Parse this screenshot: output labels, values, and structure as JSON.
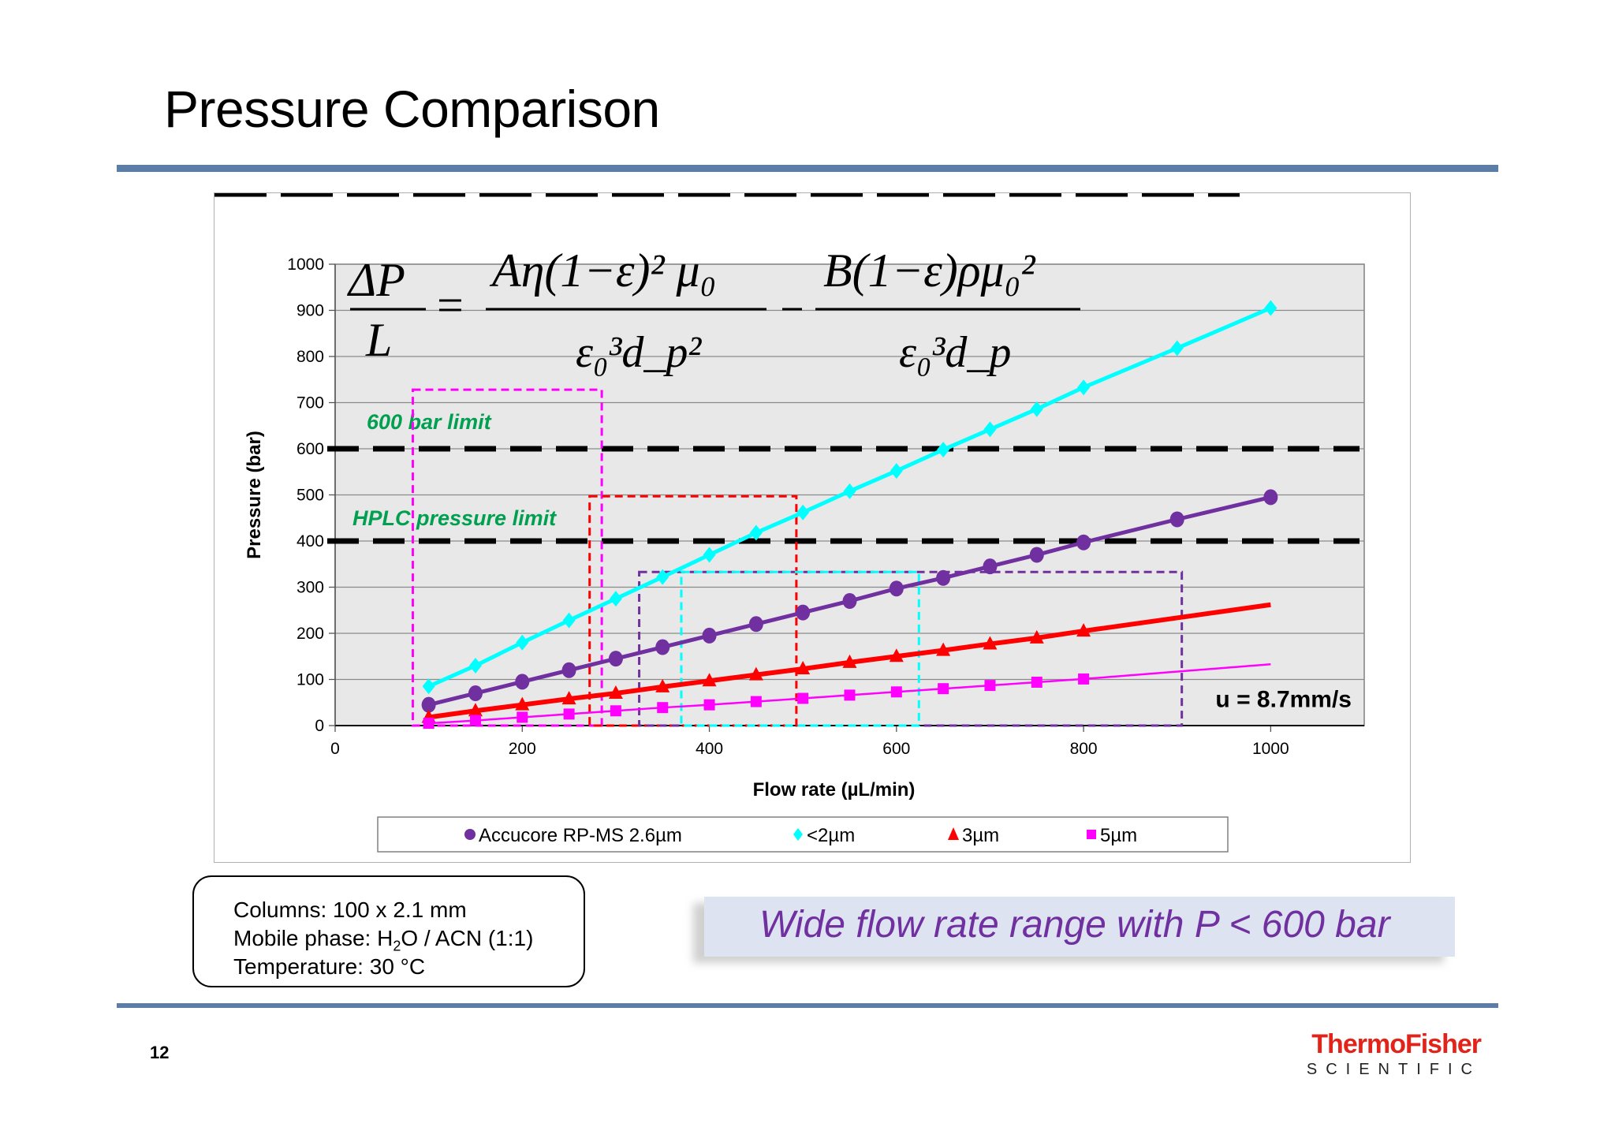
{
  "slide": {
    "title": "Pressure Comparison",
    "page_number": "12",
    "logo": {
      "brand": "ThermoFisher",
      "sub": "SCIENTIFIC"
    },
    "info_box": {
      "line1": "Columns: 100 x 2.1 mm",
      "line2_pre": "Mobile phase: H",
      "line2_sub": "2",
      "line2_post": "O / ACN (1:1)",
      "line3": "Temperature: 30 °C"
    },
    "callout": "Wide flow rate range with P  < 600 bar",
    "colors": {
      "rule": "#5b7da8",
      "callout_bg": "#dde3f1",
      "callout_text": "#7030a0",
      "logo_red": "#e2231a"
    }
  },
  "equation": {
    "lhs_num": "ΔP",
    "lhs_den": "L",
    "term1_num": "Aη(1−ε)² μ₀",
    "term1_den": "ε₀³d_p²",
    "term2_num": "B(1−ε)ρμ₀²",
    "term2_den": "ε₀³d_p"
  },
  "chart_data": {
    "type": "line",
    "title": "",
    "xlabel": "Flow rate (µL/min)",
    "ylabel": "Pressure (bar)",
    "xlim": [
      0,
      1100
    ],
    "ylim": [
      0,
      1000
    ],
    "x_ticks": [
      0,
      200,
      400,
      600,
      800,
      1000
    ],
    "y_ticks": [
      0,
      100,
      200,
      300,
      400,
      500,
      600,
      700,
      800,
      900,
      1000
    ],
    "grid": true,
    "legend_position": "bottom",
    "series": [
      {
        "name": "Accucore RP-MS 2.6µm",
        "color": "#7030a0",
        "marker": "circle",
        "x": [
          100,
          150,
          200,
          250,
          300,
          350,
          400,
          450,
          500,
          550,
          600,
          650,
          700,
          750,
          800,
          900,
          1000
        ],
        "values": [
          45,
          70,
          95,
          120,
          145,
          170,
          195,
          220,
          245,
          270,
          297,
          320,
          345,
          370,
          397,
          447,
          495
        ]
      },
      {
        "name": "<2µm",
        "color": "#00ffff",
        "marker": "diamond",
        "x": [
          100,
          150,
          200,
          250,
          300,
          350,
          400,
          450,
          500,
          550,
          600,
          650,
          700,
          750,
          800,
          900,
          1000
        ],
        "values": [
          85,
          130,
          180,
          228,
          275,
          322,
          370,
          418,
          462,
          508,
          552,
          598,
          642,
          686,
          733,
          818,
          905
        ]
      },
      {
        "name": "3µm",
        "color": "#ff0000",
        "marker": "triangle",
        "x": [
          100,
          150,
          200,
          250,
          300,
          350,
          400,
          450,
          500,
          550,
          600,
          650,
          700,
          750,
          800
        ],
        "values": [
          18,
          32,
          45,
          58,
          70,
          84,
          97,
          110,
          123,
          137,
          150,
          163,
          177,
          190,
          205
        ],
        "line_extends_to": {
          "x": 1000,
          "y": 262
        }
      },
      {
        "name": "5µm",
        "color": "#ff00ff",
        "marker": "square",
        "x": [
          100,
          150,
          200,
          250,
          300,
          350,
          400,
          450,
          500,
          550,
          600,
          650,
          700,
          750,
          800
        ],
        "values": [
          5,
          11,
          18,
          25,
          32,
          39,
          45,
          52,
          59,
          66,
          73,
          80,
          87,
          94,
          101
        ],
        "line_extends_to": {
          "x": 1000,
          "y": 133
        }
      }
    ],
    "reference_lines": [
      {
        "y": 600,
        "label": "600 bar limit",
        "style": "dashed",
        "color": "#000000"
      },
      {
        "y": 400,
        "label": "HPLC pressure limit",
        "style": "dashed",
        "color": "#000000"
      }
    ],
    "annotations": [
      {
        "text": "u = 8.7mm/s",
        "x": 1000,
        "y": 60
      },
      {
        "text": "600 bar limit",
        "color": "#00a050"
      },
      {
        "text": "HPLC pressure limit",
        "color": "#00a050"
      }
    ],
    "regions": [
      {
        "series": "5µm",
        "color": "#ff00ff",
        "x": [
          83,
          285
        ],
        "y": [
          0,
          728
        ]
      },
      {
        "series": "3µm",
        "color": "#ff0000",
        "x": [
          272,
          493
        ],
        "y": [
          0,
          497
        ]
      },
      {
        "series": "Accucore RP-MS 2.6µm",
        "color": "#7030a0",
        "x": [
          325,
          905
        ],
        "y": [
          0,
          333
        ]
      },
      {
        "series": "<2µm",
        "color": "#00ffff",
        "x": [
          370,
          624
        ],
        "y": [
          0,
          333
        ]
      }
    ]
  }
}
